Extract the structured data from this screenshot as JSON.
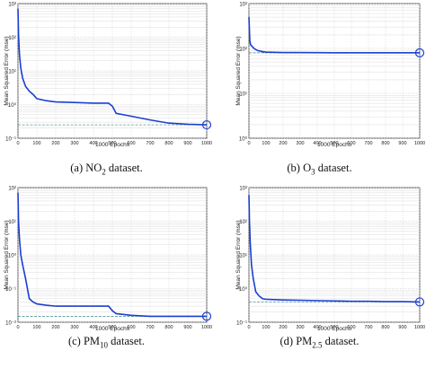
{
  "figure": {
    "panels": [
      {
        "id": "a",
        "caption_prefix": "(a) NO",
        "caption_sub": "2",
        "caption_suffix": " dataset.",
        "show_ylabel": true
      },
      {
        "id": "b",
        "caption_prefix": "(b) O",
        "caption_sub": "3",
        "caption_suffix": " dataset.",
        "show_ylabel": true
      },
      {
        "id": "c",
        "caption_prefix": "(c) PM",
        "caption_sub": "10",
        "caption_suffix": " dataset.",
        "show_ylabel": true
      },
      {
        "id": "d",
        "caption_prefix": "(d) PM",
        "caption_sub": "2.5",
        "caption_suffix": " dataset.",
        "show_ylabel": true
      }
    ]
  },
  "chart_data": [
    {
      "type": "line",
      "title": "",
      "xlabel": "1000 Epochs",
      "ylabel": "Mean Squared Error (mse)",
      "yscale": "log",
      "xlim": [
        0,
        1000
      ],
      "ylim": [
        0.1,
        1000
      ],
      "xticks": [
        0,
        100,
        200,
        300,
        400,
        500,
        600,
        700,
        800,
        900,
        1000
      ],
      "yticks": [
        0.1,
        1,
        10,
        100,
        1000
      ],
      "ytick_labels": [
        "10⁻¹",
        "10⁰",
        "10¹",
        "10²",
        "10³"
      ],
      "grid": true,
      "line_color": "#1a3fd1",
      "goal_color": "#3a8a8a",
      "series": [
        {
          "x": [
            0,
            3,
            8,
            15,
            25,
            40,
            60,
            80,
            100,
            150,
            200,
            300,
            400,
            480,
            500,
            520,
            600,
            700,
            800,
            900,
            1000
          ],
          "values": [
            700,
            120,
            30,
            12,
            6,
            3.5,
            2.5,
            2.0,
            1.5,
            1.3,
            1.2,
            1.15,
            1.1,
            1.1,
            0.9,
            0.55,
            0.45,
            0.35,
            0.28,
            0.26,
            0.25
          ]
        }
      ],
      "goal": 0.25,
      "best_point": {
        "x": 1000,
        "y": 0.25
      }
    },
    {
      "type": "line",
      "title": "",
      "xlabel": "1000 Epochs",
      "ylabel": "Mean Squared Error (mse)",
      "yscale": "log",
      "xlim": [
        0,
        1000
      ],
      "ylim": [
        1,
        1000
      ],
      "xticks": [
        0,
        100,
        200,
        300,
        400,
        500,
        600,
        700,
        800,
        900,
        1000
      ],
      "yticks": [
        1,
        10,
        100,
        1000
      ],
      "ytick_labels": [
        "10⁰",
        "10¹",
        "10²",
        "10³"
      ],
      "grid": true,
      "line_color": "#1a3fd1",
      "goal_color": "#3a8a8a",
      "series": [
        {
          "x": [
            0,
            5,
            10,
            20,
            30,
            50,
            80,
            100,
            150,
            200,
            300,
            500,
            700,
            1000
          ],
          "values": [
            500,
            150,
            120,
            110,
            100,
            90,
            85,
            83,
            82,
            81,
            81,
            80,
            80,
            80
          ]
        }
      ],
      "goal": 80,
      "best_point": {
        "x": 1000,
        "y": 80
      }
    },
    {
      "type": "line",
      "title": "",
      "xlabel": "1000 Epochs",
      "ylabel": "Mean Squared Error (mse)",
      "yscale": "log",
      "xlim": [
        0,
        1000
      ],
      "ylim": [
        0.01,
        100
      ],
      "xticks": [
        0,
        100,
        200,
        300,
        400,
        500,
        600,
        700,
        800,
        900,
        1000
      ],
      "yticks": [
        0.01,
        0.1,
        1,
        10,
        100
      ],
      "ytick_labels": [
        "10⁻²",
        "10⁻¹",
        "10⁰",
        "10¹",
        "10²"
      ],
      "grid": true,
      "line_color": "#1a3fd1",
      "goal_color": "#3a8a8a",
      "series": [
        {
          "x": [
            0,
            3,
            8,
            15,
            25,
            40,
            60,
            80,
            100,
            150,
            200,
            300,
            400,
            480,
            500,
            520,
            600,
            700,
            800,
            900,
            1000
          ],
          "values": [
            70,
            10,
            3,
            1,
            0.5,
            0.2,
            0.05,
            0.04,
            0.035,
            0.032,
            0.03,
            0.03,
            0.03,
            0.03,
            0.022,
            0.018,
            0.016,
            0.015,
            0.015,
            0.015,
            0.015
          ]
        }
      ],
      "goal": 0.015,
      "best_point": {
        "x": 1000,
        "y": 0.015
      }
    },
    {
      "type": "line",
      "title": "",
      "xlabel": "1000 Epochs",
      "ylabel": "Mean Squared Error (mse)",
      "yscale": "log",
      "xlim": [
        0,
        1000
      ],
      "ylim": [
        0.1,
        1000
      ],
      "xticks": [
        0,
        100,
        200,
        300,
        400,
        500,
        600,
        700,
        800,
        900,
        1000
      ],
      "yticks": [
        0.1,
        1,
        10,
        100,
        1000
      ],
      "ytick_labels": [
        "10⁻¹",
        "10⁰",
        "10¹",
        "10²",
        "10³"
      ],
      "grid": true,
      "line_color": "#1a3fd1",
      "goal_color": "#3a8a8a",
      "series": [
        {
          "x": [
            0,
            3,
            8,
            15,
            25,
            40,
            60,
            80,
            100,
            200,
            300,
            400,
            500,
            600,
            700,
            800,
            900,
            1000
          ],
          "values": [
            600,
            100,
            20,
            5,
            2,
            0.8,
            0.6,
            0.5,
            0.48,
            0.46,
            0.45,
            0.44,
            0.43,
            0.42,
            0.42,
            0.41,
            0.41,
            0.4
          ]
        }
      ],
      "goal": 0.4,
      "best_point": {
        "x": 1000,
        "y": 0.4
      }
    }
  ]
}
